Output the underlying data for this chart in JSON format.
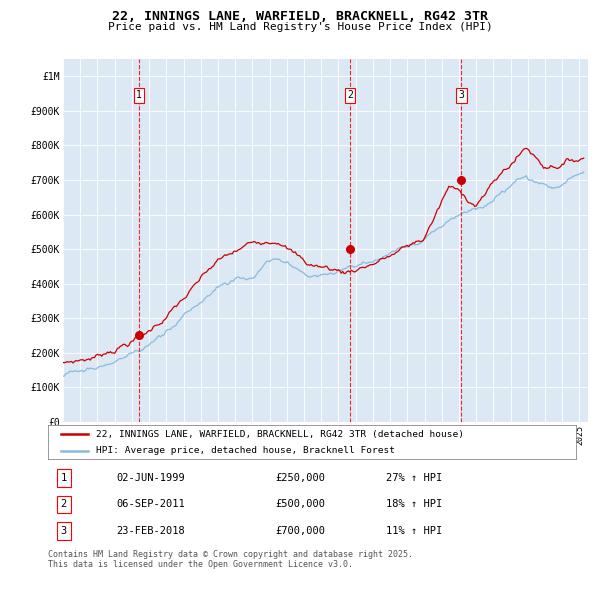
{
  "title": "22, INNINGS LANE, WARFIELD, BRACKNELL, RG42 3TR",
  "subtitle": "Price paid vs. HM Land Registry's House Price Index (HPI)",
  "background_color": "#dce9f5",
  "fig_bg_color": "#ffffff",
  "red_line_color": "#cc0000",
  "blue_line_color": "#88bbdd",
  "ylim": [
    0,
    1050000
  ],
  "yticks": [
    0,
    100000,
    200000,
    300000,
    400000,
    500000,
    600000,
    700000,
    800000,
    900000,
    1000000
  ],
  "ytick_labels": [
    "£0",
    "£100K",
    "£200K",
    "£300K",
    "£400K",
    "£500K",
    "£600K",
    "£700K",
    "£800K",
    "£900K",
    "£1M"
  ],
  "sale_dates": [
    "1999-06-02",
    "2011-09-06",
    "2018-02-23"
  ],
  "sale_prices": [
    250000,
    500000,
    700000
  ],
  "sale_labels": [
    "1",
    "2",
    "3"
  ],
  "legend_label_red": "22, INNINGS LANE, WARFIELD, BRACKNELL, RG42 3TR (detached house)",
  "legend_label_blue": "HPI: Average price, detached house, Bracknell Forest",
  "footnote": "Contains HM Land Registry data © Crown copyright and database right 2025.\nThis data is licensed under the Open Government Licence v3.0.",
  "table_rows": [
    [
      "1",
      "02-JUN-1999",
      "£250,000",
      "27% ↑ HPI"
    ],
    [
      "2",
      "06-SEP-2011",
      "£500,000",
      "18% ↑ HPI"
    ],
    [
      "3",
      "23-FEB-2018",
      "£700,000",
      "11% ↑ HPI"
    ]
  ]
}
